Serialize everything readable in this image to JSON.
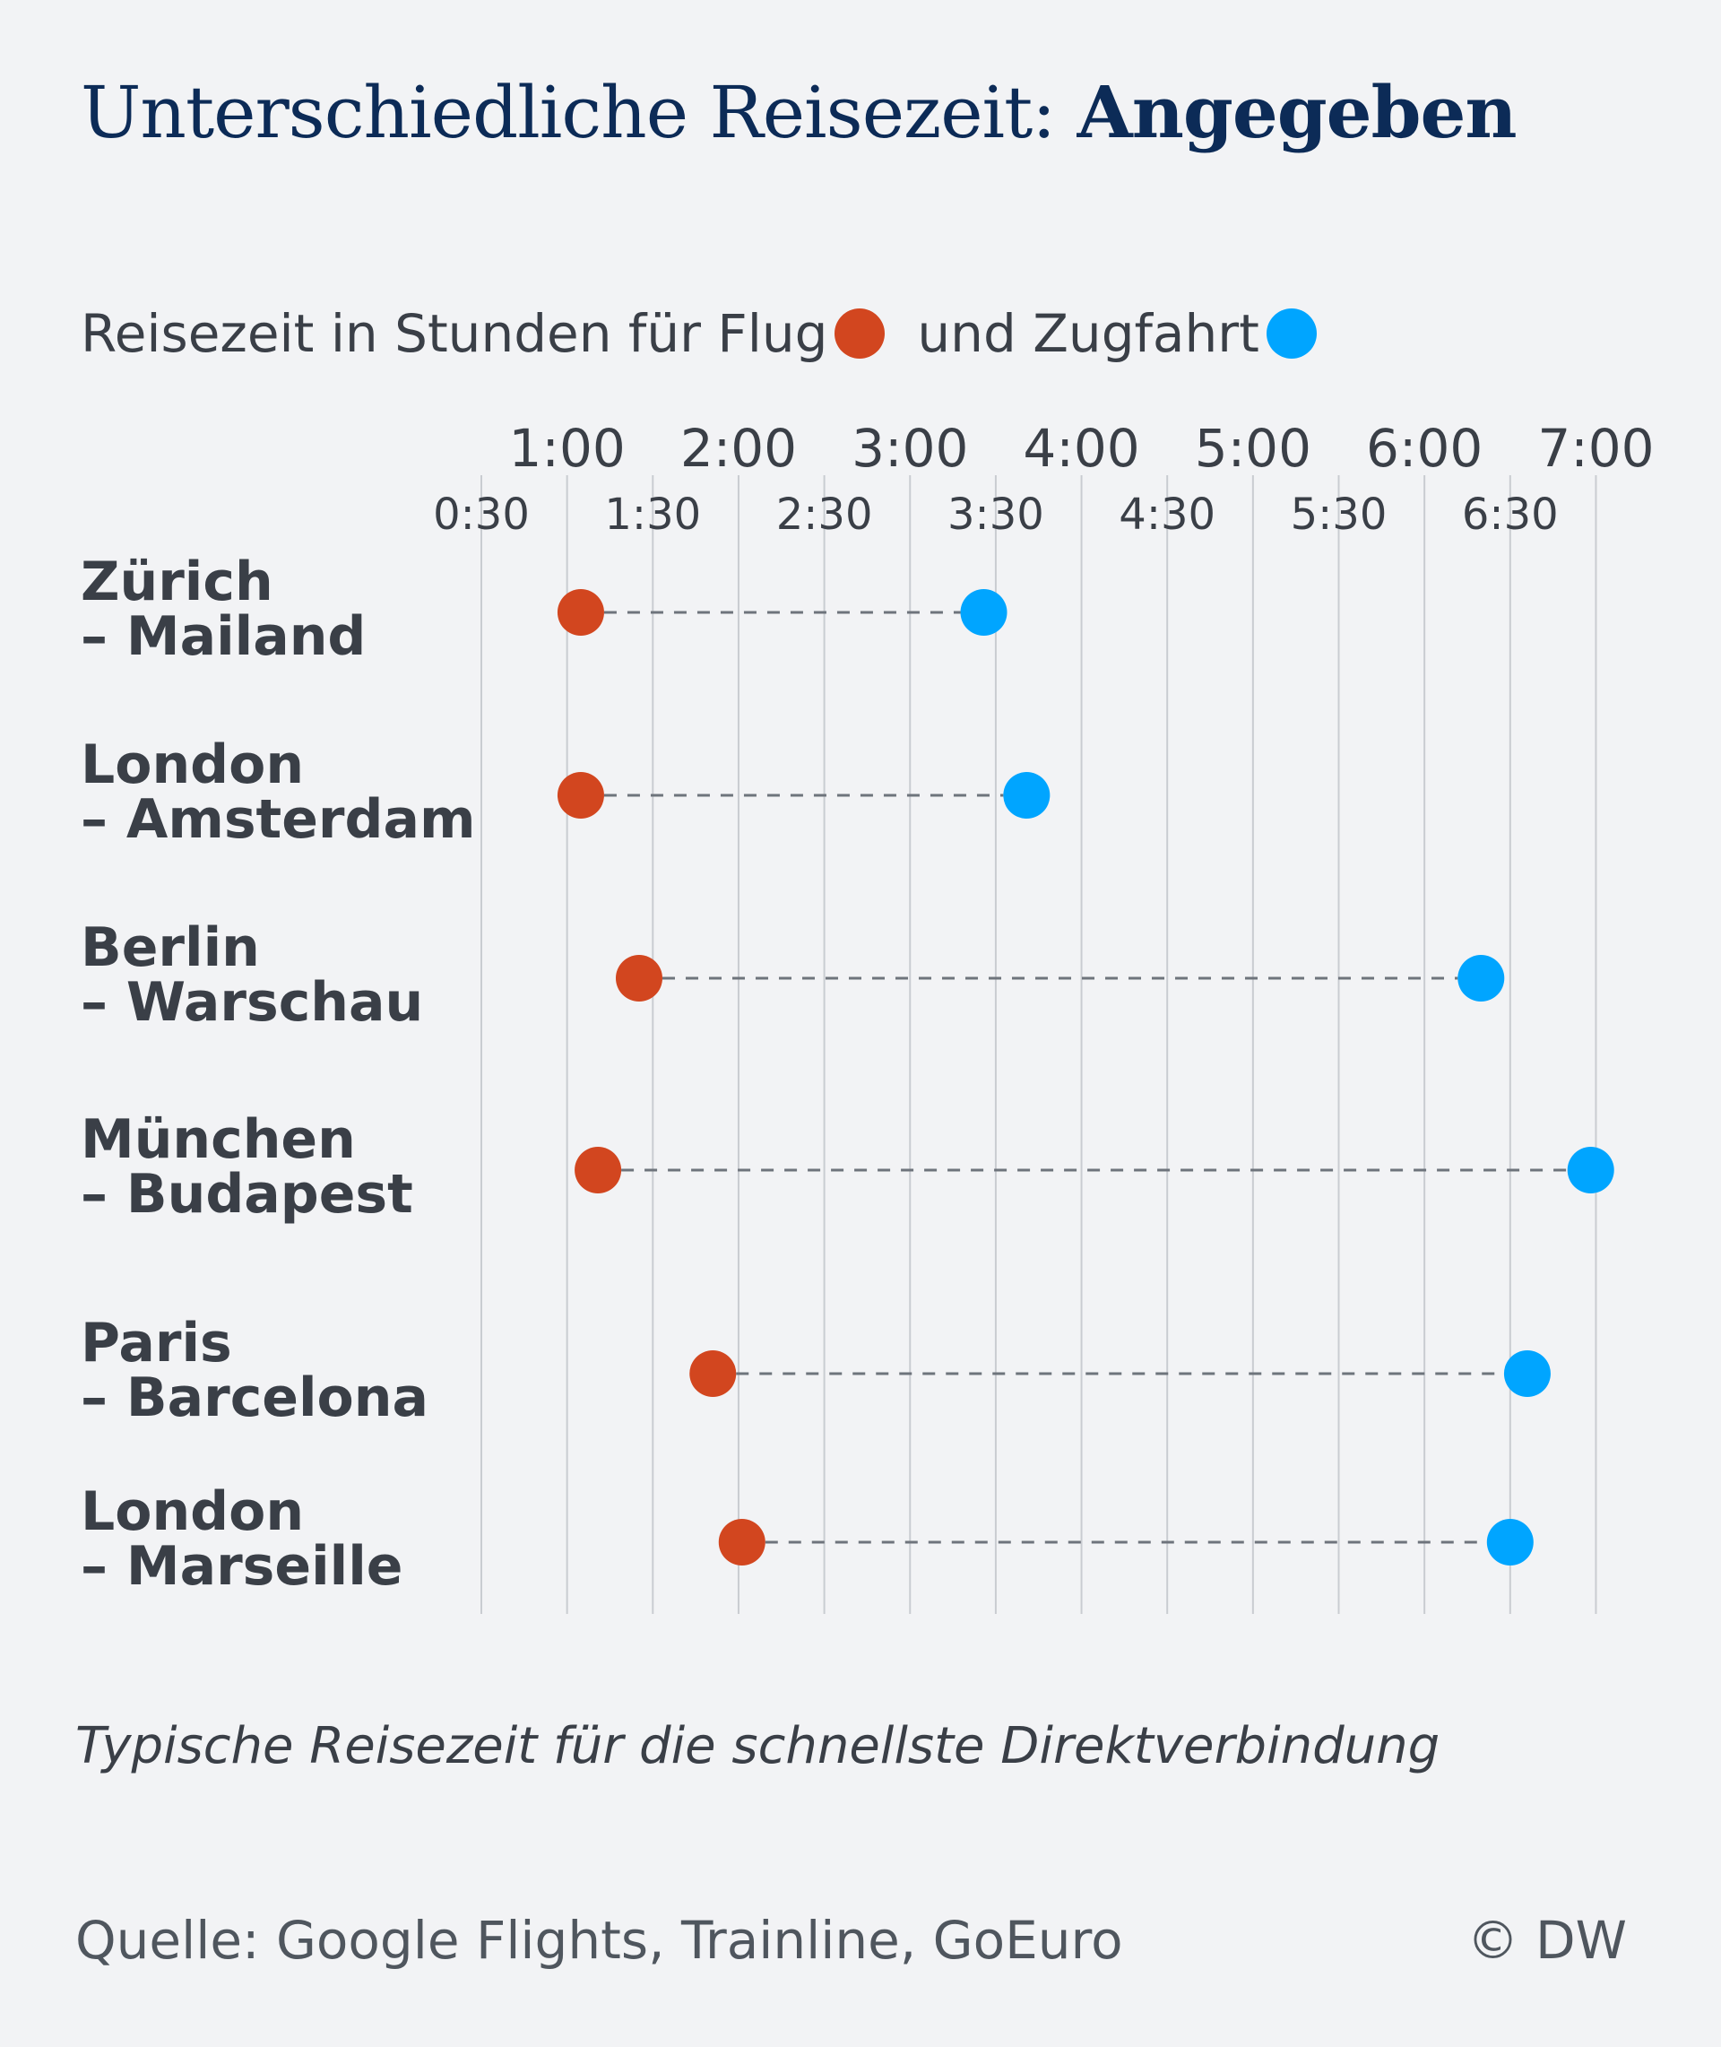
{
  "title_regular": "Unterschiedliche Reisezeit: ",
  "title_bold": "Angegeben",
  "legend": {
    "prefix": "Reisezeit in Stunden für Flug",
    "middle": "und Zugfahrt"
  },
  "colors": {
    "flight": "#d2461f",
    "train": "#00a5ff",
    "title": "#0c2b57"
  },
  "note": "Typische Reisezeit für die schnellste Direktverbindung",
  "source": "Quelle: Google Flights, Trainline, GoEuro",
  "copyright": "© DW",
  "chart_data": {
    "type": "dumbbell",
    "xlim_hours": [
      0.5,
      7.0
    ],
    "major_ticks": [
      {
        "value": 1.0,
        "label": "1:00"
      },
      {
        "value": 2.0,
        "label": "2:00"
      },
      {
        "value": 3.0,
        "label": "3:00"
      },
      {
        "value": 4.0,
        "label": "4:00"
      },
      {
        "value": 5.0,
        "label": "5:00"
      },
      {
        "value": 6.0,
        "label": "6:00"
      },
      {
        "value": 7.0,
        "label": "7:00"
      }
    ],
    "minor_ticks": [
      {
        "value": 0.5,
        "label": "0:30"
      },
      {
        "value": 1.5,
        "label": "1:30"
      },
      {
        "value": 2.5,
        "label": "2:30"
      },
      {
        "value": 3.5,
        "label": "3:30"
      },
      {
        "value": 4.5,
        "label": "4:30"
      },
      {
        "value": 5.5,
        "label": "5:30"
      },
      {
        "value": 6.5,
        "label": "6:30"
      }
    ],
    "grid": true,
    "routes": [
      {
        "line1": "Zürich",
        "line2": "– Mailand",
        "flight": 1.08,
        "train": 3.43
      },
      {
        "line1": "London",
        "line2": "– Amsterdam",
        "flight": 1.08,
        "train": 3.68
      },
      {
        "line1": "Berlin",
        "line2": "– Warschau",
        "flight": 1.42,
        "train": 6.33
      },
      {
        "line1": "München",
        "line2": "– Budapest",
        "flight": 1.18,
        "train": 6.97
      },
      {
        "line1": "Paris",
        "line2": "– Barcelona",
        "flight": 1.85,
        "train": 6.6
      },
      {
        "line1": "London",
        "line2": "– Marseille",
        "flight": 2.02,
        "train": 6.5
      }
    ]
  }
}
